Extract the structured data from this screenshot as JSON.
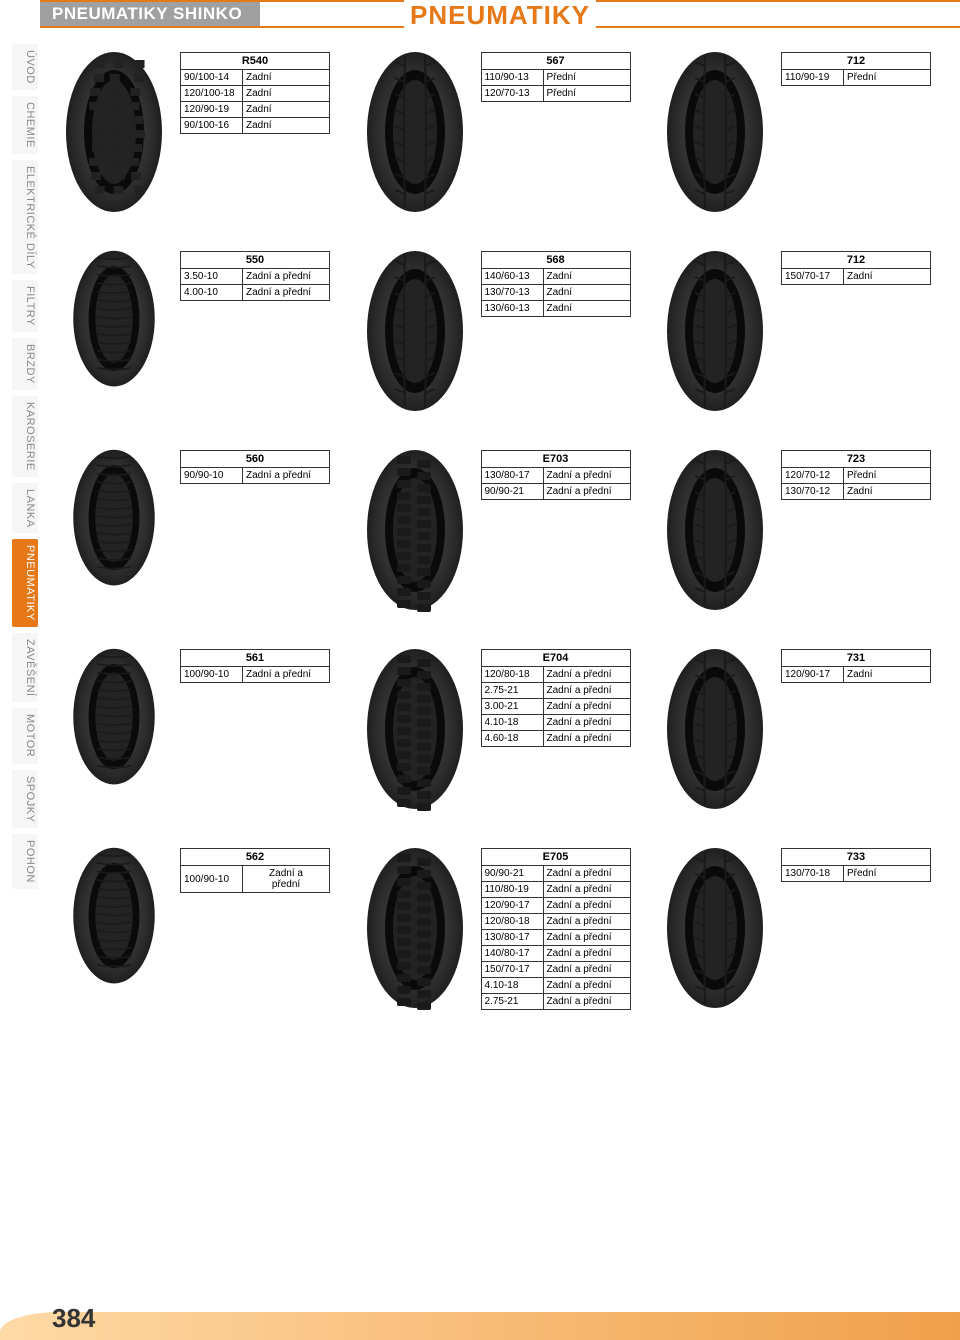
{
  "header": {
    "subtitle": "PNEUMATIKY SHINKO",
    "title": "PNEUMATIKY",
    "titleColor": "#e67817",
    "subtitleBg": "#a0a0a0",
    "borderColor": "#e67817"
  },
  "sidebar": {
    "items": [
      {
        "label": "ÚVOD",
        "active": false
      },
      {
        "label": "CHEMIE",
        "active": false
      },
      {
        "label": "ELEKTRICKÉ DÍLY",
        "active": false
      },
      {
        "label": "FILTRY",
        "active": false
      },
      {
        "label": "BRZDY",
        "active": false
      },
      {
        "label": "KAROSERIE",
        "active": false
      },
      {
        "label": "LANKA",
        "active": false
      },
      {
        "label": "PNEUMATIKY",
        "active": true
      },
      {
        "label": "ZAVĚŠENÍ",
        "active": false
      },
      {
        "label": "MOTOR",
        "active": false
      },
      {
        "label": "SPOJKY",
        "active": false
      },
      {
        "label": "POHON",
        "active": false
      }
    ],
    "activeBg": "#e67817",
    "inactiveColor": "#888888"
  },
  "grid": {
    "rows": [
      [
        {
          "model": "R540",
          "specs": [
            [
              "90/100-14",
              "Zadní"
            ],
            [
              "120/100-18",
              "Zadní"
            ],
            [
              "120/90-19",
              "Zadní"
            ],
            [
              "90/100-16",
              "Zadní"
            ]
          ],
          "tire": "knobby"
        },
        {
          "model": "567",
          "specs": [
            [
              "110/90-13",
              "Přední"
            ],
            [
              "120/70-13",
              "Přední"
            ]
          ],
          "tire": "street"
        },
        {
          "model": "712",
          "specs": [
            [
              "110/90-19",
              "Přední"
            ]
          ],
          "tire": "street"
        }
      ],
      [
        {
          "model": "550",
          "specs": [
            [
              "3.50-10",
              "Zadní a přední"
            ],
            [
              "4.00-10",
              "Zadní a přední"
            ]
          ],
          "tire": "scooter"
        },
        {
          "model": "568",
          "specs": [
            [
              "140/60-13",
              "Zadní"
            ],
            [
              "130/70-13",
              "Zadní"
            ],
            [
              "130/60-13",
              "Zadní"
            ]
          ],
          "tire": "street"
        },
        {
          "model": "712",
          "specs": [
            [
              "150/70-17",
              "Zadní"
            ]
          ],
          "tire": "street"
        }
      ],
      [
        {
          "model": "560",
          "specs": [
            [
              "90/90-10",
              "Zadní a přední"
            ]
          ],
          "tire": "scooter"
        },
        {
          "model": "E703",
          "specs": [
            [
              "130/80-17",
              "Zadní a přední"
            ],
            [
              "90/90-21",
              "Zadní a přední"
            ]
          ],
          "tire": "dual"
        },
        {
          "model": "723",
          "specs": [
            [
              "120/70-12",
              "Přední"
            ],
            [
              "130/70-12",
              "Zadní"
            ]
          ],
          "tire": "street"
        }
      ],
      [
        {
          "model": "561",
          "specs": [
            [
              "100/90-10",
              "Zadní a přední"
            ]
          ],
          "tire": "scooter"
        },
        {
          "model": "E704",
          "specs": [
            [
              "120/80-18",
              "Zadní a přední"
            ],
            [
              "2.75-21",
              "Zadní a přední"
            ],
            [
              "3.00-21",
              "Zadní a přední"
            ],
            [
              "4.10-18",
              "Zadní a přední"
            ],
            [
              "4.60-18",
              "Zadní a přední"
            ]
          ],
          "tire": "dual"
        },
        {
          "model": "731",
          "specs": [
            [
              "120/90-17",
              "Zadní"
            ]
          ],
          "tire": "street"
        }
      ],
      [
        {
          "model": "562",
          "specs": [
            [
              "100/90-10",
              "Zadní a\npřední"
            ]
          ],
          "tire": "scooter",
          "stacked": true
        },
        {
          "model": "E705",
          "specs": [
            [
              "90/90-21",
              "Zadní a přední"
            ],
            [
              "110/80-19",
              "Zadní a přední"
            ],
            [
              "120/90-17",
              "Zadní a přední"
            ],
            [
              "120/80-18",
              "Zadní a přední"
            ],
            [
              "130/80-17",
              "Zadní a přední"
            ],
            [
              "140/80-17",
              "Zadní a přední"
            ],
            [
              "150/70-17",
              "Zadní a přední"
            ],
            [
              "4.10-18",
              "Zadní a přední"
            ],
            [
              "2.75-21",
              "Zadní a přední"
            ]
          ],
          "tire": "dual"
        },
        {
          "model": "733",
          "specs": [
            [
              "130/70-18",
              "Přední"
            ]
          ],
          "tire": "street"
        }
      ]
    ]
  },
  "footer": {
    "pageNumber": "384",
    "gradientStart": "#ffd9a6",
    "gradientEnd": "#f0a04a"
  },
  "styling": {
    "bodyWidth": 960,
    "bodyHeight": 1340,
    "tableBorder": "#333333",
    "tableFontSize": 10,
    "tableHeaderFontSize": 11,
    "pageNumFontSize": 26
  }
}
